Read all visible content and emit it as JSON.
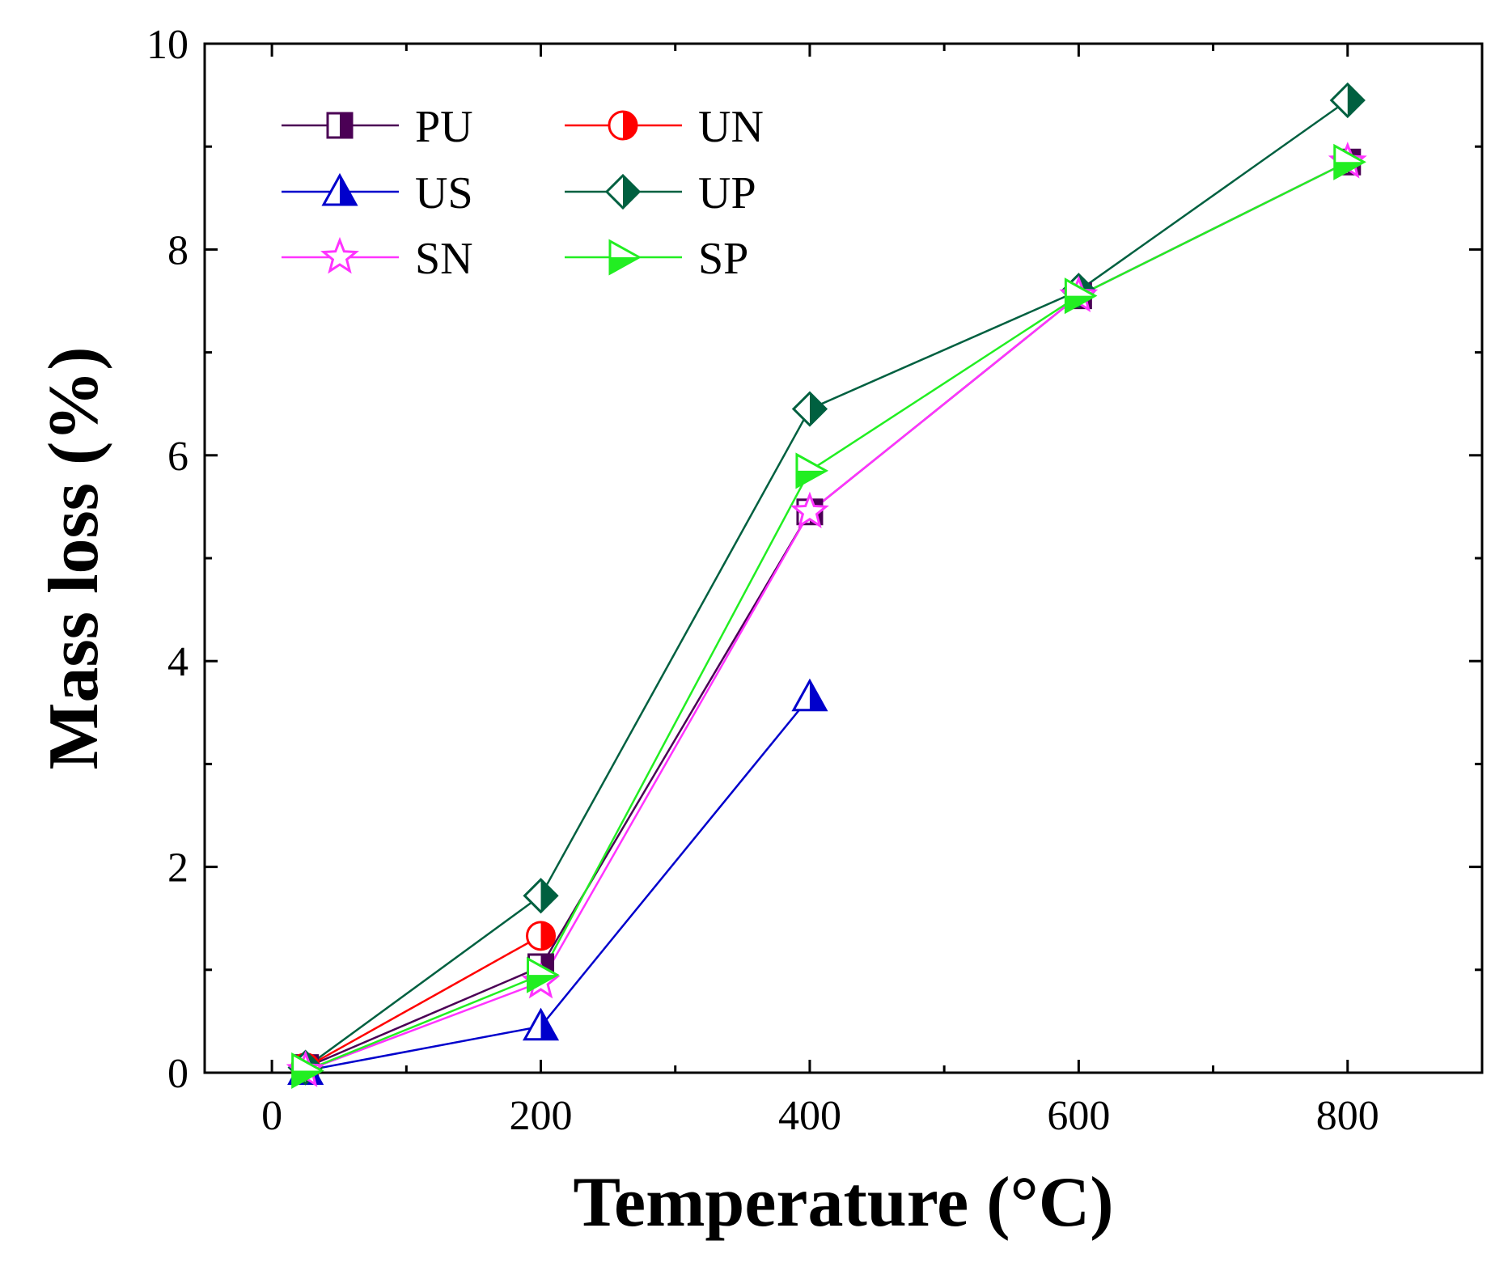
{
  "chart_data": {
    "type": "line",
    "title": "",
    "xlabel": "Temperature (°C)",
    "ylabel": "Mass loss (%)",
    "xlim": [
      -50,
      900
    ],
    "ylim": [
      0,
      10
    ],
    "xticks": [
      0,
      200,
      400,
      600,
      800
    ],
    "yticks": [
      0,
      2,
      4,
      6,
      8,
      10
    ],
    "legend_position": "top-left",
    "grid": false,
    "series": [
      {
        "name": "PU",
        "color": "#4b0055",
        "marker": "square-half",
        "x": [
          25,
          200,
          400,
          600,
          800
        ],
        "y": [
          0.05,
          1.03,
          5.45,
          7.55,
          8.85
        ]
      },
      {
        "name": "UN",
        "color": "#ff0000",
        "marker": "circle-half",
        "x": [
          25,
          200
        ],
        "y": [
          0.05,
          1.33
        ]
      },
      {
        "name": "US",
        "color": "#0000cc",
        "marker": "triangle-half",
        "x": [
          25,
          200,
          400
        ],
        "y": [
          0.02,
          0.45,
          3.65
        ]
      },
      {
        "name": "UP",
        "color": "#006040",
        "marker": "diamond-half",
        "x": [
          25,
          200,
          400,
          600,
          800
        ],
        "y": [
          0.05,
          1.72,
          6.45,
          7.6,
          9.45
        ]
      },
      {
        "name": "SN",
        "color": "#ff33ff",
        "marker": "star",
        "x": [
          25,
          200,
          400,
          600,
          800
        ],
        "y": [
          0.02,
          0.88,
          5.45,
          7.55,
          8.85
        ]
      },
      {
        "name": "SP",
        "color": "#22ee22",
        "marker": "triangle-right-half",
        "x": [
          25,
          200,
          400,
          600,
          800
        ],
        "y": [
          0.02,
          0.95,
          5.85,
          7.55,
          8.85
        ]
      }
    ]
  }
}
